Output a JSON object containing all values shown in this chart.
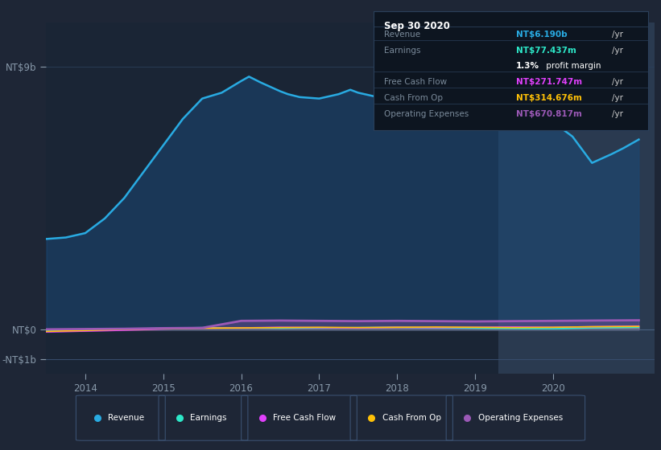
{
  "bg_color": "#1e2636",
  "plot_bg_color": "#1a2535",
  "highlight_bg_color": "#2a3a50",
  "ytick_values": [
    9000,
    0,
    -1000
  ],
  "ytick_labels": [
    "NT$9b",
    "NT$0",
    "-NT$1b"
  ],
  "ylim": [
    -1500,
    10500
  ],
  "xticks": [
    2014,
    2015,
    2016,
    2017,
    2018,
    2019,
    2020
  ],
  "xlim": [
    2013.5,
    2021.3
  ],
  "legend_items": [
    {
      "label": "Revenue",
      "color": "#29abe2"
    },
    {
      "label": "Earnings",
      "color": "#2de8c8"
    },
    {
      "label": "Free Cash Flow",
      "color": "#e040fb"
    },
    {
      "label": "Cash From Op",
      "color": "#ffc107"
    },
    {
      "label": "Operating Expenses",
      "color": "#9b59b6"
    }
  ],
  "tooltip": {
    "date": "Sep 30 2020",
    "rows": [
      {
        "label": "Revenue",
        "value": "NT$6.190b",
        "color": "#29abe2",
        "suffix": " /yr",
        "extra": null
      },
      {
        "label": "Earnings",
        "value": "NT$77.437m",
        "color": "#2de8c8",
        "suffix": " /yr",
        "extra": "1.3% profit margin"
      },
      {
        "label": "Free Cash Flow",
        "value": "NT$271.747m",
        "color": "#e040fb",
        "suffix": " /yr",
        "extra": null
      },
      {
        "label": "Cash From Op",
        "value": "NT$314.676m",
        "color": "#ffc107",
        "suffix": " /yr",
        "extra": null
      },
      {
        "label": "Operating Expenses",
        "value": "NT$670.817m",
        "color": "#9b59b6",
        "suffix": " /yr",
        "extra": null
      }
    ]
  },
  "x_revenue": [
    2013.5,
    2013.75,
    2014.0,
    2014.25,
    2014.5,
    2014.75,
    2015.0,
    2015.25,
    2015.5,
    2015.75,
    2016.0,
    2016.1,
    2016.25,
    2016.5,
    2016.6,
    2016.75,
    2017.0,
    2017.25,
    2017.4,
    2017.5,
    2017.75,
    2018.0,
    2018.25,
    2018.5,
    2018.6,
    2018.75,
    2019.0,
    2019.25,
    2019.5,
    2019.75,
    2020.0,
    2020.25,
    2020.5,
    2020.75,
    2020.9,
    2021.1
  ],
  "y_revenue": [
    3100,
    3150,
    3300,
    3800,
    4500,
    5400,
    6300,
    7200,
    7900,
    8100,
    8500,
    8650,
    8450,
    8150,
    8050,
    7950,
    7900,
    8050,
    8200,
    8100,
    7950,
    8050,
    8200,
    8300,
    8100,
    8000,
    8050,
    7900,
    7750,
    7500,
    7100,
    6600,
    5700,
    6000,
    6200,
    6500
  ],
  "x_earnings": [
    2013.5,
    2014.0,
    2014.5,
    2015.0,
    2015.5,
    2016.0,
    2016.5,
    2017.0,
    2017.5,
    2018.0,
    2018.5,
    2019.0,
    2019.5,
    2020.0,
    2020.5,
    2021.1
  ],
  "y_earnings": [
    -50,
    -30,
    20,
    50,
    70,
    60,
    50,
    60,
    70,
    80,
    60,
    50,
    40,
    30,
    60,
    80
  ],
  "x_fcf": [
    2013.5,
    2014.0,
    2014.5,
    2015.0,
    2015.5,
    2016.0,
    2016.5,
    2017.0,
    2017.5,
    2018.0,
    2018.5,
    2019.0,
    2019.5,
    2020.0,
    2020.5,
    2021.1
  ],
  "y_fcf": [
    -80,
    -50,
    -20,
    20,
    50,
    60,
    80,
    70,
    60,
    80,
    70,
    80,
    90,
    80,
    100,
    120
  ],
  "x_cashop": [
    2013.5,
    2014.0,
    2014.5,
    2015.0,
    2015.5,
    2016.0,
    2016.5,
    2017.0,
    2017.5,
    2018.0,
    2018.5,
    2019.0,
    2019.5,
    2020.0,
    2020.5,
    2021.1
  ],
  "y_cashop": [
    -60,
    -30,
    10,
    30,
    50,
    60,
    70,
    80,
    70,
    80,
    90,
    80,
    70,
    80,
    100,
    110
  ],
  "x_opex": [
    2013.5,
    2014.0,
    2014.5,
    2015.0,
    2015.5,
    2016.0,
    2016.5,
    2017.0,
    2017.5,
    2018.0,
    2018.5,
    2019.0,
    2019.5,
    2020.0,
    2020.5,
    2021.1
  ],
  "y_opex": [
    10,
    20,
    30,
    50,
    60,
    300,
    310,
    300,
    290,
    300,
    290,
    280,
    290,
    300,
    310,
    320
  ],
  "highlight_start": 2019.3,
  "highlight_end": 2021.3
}
